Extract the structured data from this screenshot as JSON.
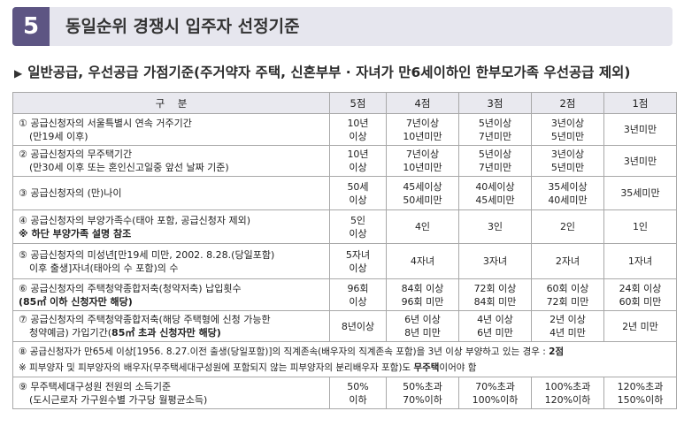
{
  "section": {
    "number": "5",
    "title": "동일순위 경쟁시 입주자 선정기준"
  },
  "subtitle": "일반공급, 우선공급 가점기준(주거약자 주택, 신혼부부 · 자녀가 만6세이하인 한부모가족 우선공급 제외)",
  "table": {
    "headers": [
      "구    분",
      "5점",
      "4점",
      "3점",
      "2점",
      "1점"
    ],
    "rows": [
      {
        "label1": "① 공급신청자의 서울특별시 연속 거주기간",
        "label2": "(만19세 이후)",
        "s5": [
          "10년",
          "이상"
        ],
        "s4": [
          "7년이상",
          "10년미만"
        ],
        "s3": [
          "5년이상",
          "7년미만"
        ],
        "s2": [
          "3년이상",
          "5년미만"
        ],
        "s1": "3년미만"
      },
      {
        "label1": "② 공급신청자의 무주택기간",
        "label2": "(만30세 이후 또는 혼인신고일중 앞선 날짜 기준)",
        "s5": [
          "10년",
          "이상"
        ],
        "s4": [
          "7년이상",
          "10년미만"
        ],
        "s3": [
          "5년이상",
          "7년미만"
        ],
        "s2": [
          "3년이상",
          "5년미만"
        ],
        "s1": "3년미만"
      },
      {
        "label1": "③ 공급신청자의 (만)나이",
        "s5": [
          "50세",
          "이상"
        ],
        "s4": [
          "45세이상",
          "50세미만"
        ],
        "s3": [
          "40세이상",
          "45세미만"
        ],
        "s2": [
          "35세이상",
          "40세미만"
        ],
        "s1": "35세미만"
      },
      {
        "label1": "④ 공급신청자의 부양가족수(태아 포함, 공급신청자 제외)",
        "label2": "※ 하단 부양가족 설명 참조",
        "s5": [
          "5인",
          "이상"
        ],
        "s4": "4인",
        "s3": "3인",
        "s2": "2인",
        "s1": "1인"
      },
      {
        "label1": "⑤ 공급신청자의 미성년[만19세 미만, 2002. 8.28.(당일포함)",
        "label2": "이후 출생]자녀(태아의 수 포함)의 수",
        "s5": [
          "5자녀",
          "이상"
        ],
        "s4": "4자녀",
        "s3": "3자녀",
        "s2": "2자녀",
        "s1": "1자녀"
      },
      {
        "label1": "⑥ 공급신청자의 주택청약종합저축(청약저축) 납입횟수",
        "label2": "(85㎡ 이하 신청자만 해당)",
        "s5": [
          "96회",
          "이상"
        ],
        "s4": [
          "84회 이상",
          "96회 미만"
        ],
        "s3": [
          "72회 이상",
          "84회 미만"
        ],
        "s2": [
          "60회 이상",
          "72회 미만"
        ],
        "s1": [
          "24회 이상",
          "60회 미만"
        ]
      },
      {
        "label1": "⑦ 공급신청자의 주택청약종합저축(해당 주택형에 신청 가능한",
        "label2a": "청약예금) 가입기간(",
        "label2b": "85㎡ 초과 신청자만 해당)",
        "s5": "8년이상",
        "s4": [
          "6년 이상",
          "8년 미만"
        ],
        "s3": [
          "4년 이상",
          "6년 미만"
        ],
        "s2": [
          "2년 이상",
          "4년 미만"
        ],
        "s1": "2년 미만"
      }
    ],
    "row8": {
      "text": "⑧ 공급신청자가 만65세 이상[1956. 8.27.이전 출생(당일포함)]의 직계존속(배우자의 직계존속 포함)을 3년 이상 부양하고 있는 경우 : ",
      "points": "2점",
      "note": "※ 피부양자 및 피부양자의 배우자(무주택세대구성원에 포함되지 않는 피부양자의 분리배우자 포함)도 ",
      "note_bold": "무주택",
      "note_end": "이어야 함"
    },
    "row9": {
      "label1": "⑨ 무주택세대구성원 전원의 소득기준",
      "label2": "(도시근로자 가구원수별 가구당 월평균소득)",
      "s5": [
        "50%",
        "이하"
      ],
      "s4": [
        "50%초과",
        "70%이하"
      ],
      "s3": [
        "70%초과",
        "100%이하"
      ],
      "s2": [
        "100%초과",
        "120%이하"
      ],
      "s1": [
        "120%초과",
        "150%이하"
      ]
    }
  }
}
